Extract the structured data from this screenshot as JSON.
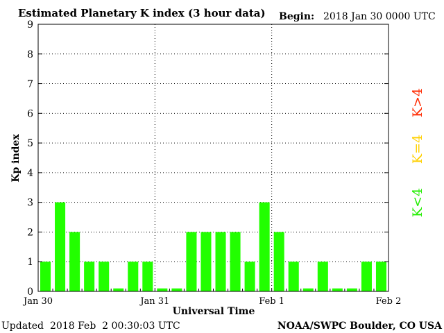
{
  "header": {
    "title": "Estimated Planetary K index (3 hour data)",
    "begin_label": "Begin:",
    "begin_value": "2018 Jan 30 0000 UTC"
  },
  "footer": {
    "updated_label": "Updated",
    "updated_value": "2018 Feb  2 00:30:03 UTC",
    "source": "NOAA/SWPC Boulder, CO USA"
  },
  "legend": [
    {
      "label": "K>4",
      "color": "#ff2a00"
    },
    {
      "label": "K=4",
      "color": "#ffd000"
    },
    {
      "label": "K<4",
      "color": "#22ee00"
    }
  ],
  "colors": {
    "bar": "#22ff00",
    "grid": "#000000",
    "axis": "#000000"
  },
  "chart_data": {
    "type": "bar",
    "title": "Estimated Planetary K index (3 hour data)",
    "xlabel": "Universal Time",
    "ylabel": "Kp index",
    "ylim": [
      0,
      9
    ],
    "yticks": [
      "0",
      "1",
      "2",
      "3",
      "4",
      "5",
      "6",
      "7",
      "8",
      "9"
    ],
    "xticks": [
      {
        "label": "Jan 30",
        "index": 0
      },
      {
        "label": "Jan 31",
        "index": 8
      },
      {
        "label": "Feb 1",
        "index": 16
      },
      {
        "label": "Feb 2",
        "index": 24
      }
    ],
    "grid": true,
    "values": [
      1,
      3,
      2,
      1,
      1,
      0.1,
      1,
      1,
      0.1,
      0.1,
      2,
      2,
      2,
      2,
      1,
      3,
      2,
      1,
      0.1,
      1,
      0.1,
      0.1,
      1,
      1
    ]
  }
}
